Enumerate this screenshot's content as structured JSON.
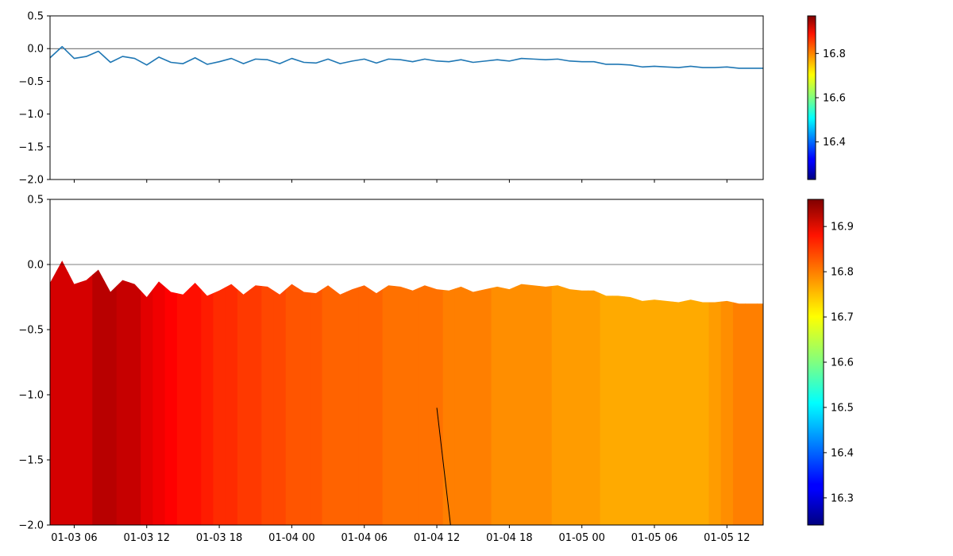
{
  "chart_data": [
    {
      "type": "line",
      "x_axis": {
        "type": "datetime",
        "tick_labels": [
          "01-03 06",
          "01-03 12",
          "01-03 18",
          "01-04 00",
          "01-04 06",
          "01-04 12",
          "01-04 18",
          "01-05 00",
          "01-05 06",
          "01-05 12"
        ]
      },
      "ylim": [
        -2.0,
        0.5
      ],
      "y_ticks": [
        "0.5",
        "0.0",
        "−0.5",
        "−1.0",
        "−1.5",
        "−2.0"
      ],
      "reference_line_y": 0,
      "line_color": "#1f77b4",
      "colorbar": {
        "colormap": "jet",
        "range": [
          16.23,
          16.97
        ],
        "tick_labels": [
          "16.4",
          "16.6",
          "16.8"
        ]
      }
    },
    {
      "type": "area",
      "x_axis": {
        "type": "datetime",
        "tick_labels": [
          "01-03 06",
          "01-03 12",
          "01-03 18",
          "01-04 00",
          "01-04 06",
          "01-04 12",
          "01-04 18",
          "01-05 00",
          "01-05 06",
          "01-05 12"
        ]
      },
      "ylim": [
        -2.0,
        0.5
      ],
      "y_ticks": [
        "0.5",
        "0.0",
        "−0.5",
        "−1.0",
        "−1.5",
        "−2.0"
      ],
      "reference_line_y": 0,
      "fill_colormap": "jet",
      "annotation_line": {
        "x": [
          "2025-01-04 12:00",
          "2025-01-04 13:08"
        ],
        "y": [
          -1.1,
          -2.0
        ]
      },
      "colorbar": {
        "colormap": "jet",
        "range": [
          16.24,
          16.96
        ],
        "tick_labels": [
          "16.3",
          "16.4",
          "16.5",
          "16.6",
          "16.7",
          "16.8",
          "16.9"
        ]
      }
    }
  ],
  "series": {
    "x": [
      "2025-01-03 04:00",
      "2025-01-03 05:00",
      "2025-01-03 06:00",
      "2025-01-03 07:00",
      "2025-01-03 08:00",
      "2025-01-03 09:00",
      "2025-01-03 10:00",
      "2025-01-03 11:00",
      "2025-01-03 12:00",
      "2025-01-03 13:00",
      "2025-01-03 14:00",
      "2025-01-03 15:00",
      "2025-01-03 16:00",
      "2025-01-03 17:00",
      "2025-01-03 18:00",
      "2025-01-03 19:00",
      "2025-01-03 20:00",
      "2025-01-03 21:00",
      "2025-01-03 22:00",
      "2025-01-03 23:00",
      "2025-01-04 00:00",
      "2025-01-04 01:00",
      "2025-01-04 02:00",
      "2025-01-04 03:00",
      "2025-01-04 04:00",
      "2025-01-04 05:00",
      "2025-01-04 06:00",
      "2025-01-04 07:00",
      "2025-01-04 08:00",
      "2025-01-04 09:00",
      "2025-01-04 10:00",
      "2025-01-04 11:00",
      "2025-01-04 12:00",
      "2025-01-04 13:00",
      "2025-01-04 14:00",
      "2025-01-04 15:00",
      "2025-01-04 16:00",
      "2025-01-04 17:00",
      "2025-01-04 18:00",
      "2025-01-04 19:00",
      "2025-01-04 20:00",
      "2025-01-04 21:00",
      "2025-01-04 22:00",
      "2025-01-04 23:00",
      "2025-01-05 00:00",
      "2025-01-05 01:00",
      "2025-01-05 02:00",
      "2025-01-05 03:00",
      "2025-01-05 04:00",
      "2025-01-05 05:00",
      "2025-01-05 06:00",
      "2025-01-05 07:00",
      "2025-01-05 08:00",
      "2025-01-05 09:00",
      "2025-01-05 10:00",
      "2025-01-05 11:00",
      "2025-01-05 12:00",
      "2025-01-05 13:00",
      "2025-01-05 14:00",
      "2025-01-05 15:00"
    ],
    "values": [
      -0.14,
      0.03,
      -0.15,
      -0.12,
      -0.04,
      -0.21,
      -0.12,
      -0.15,
      -0.25,
      -0.13,
      -0.21,
      -0.23,
      -0.14,
      -0.24,
      -0.2,
      -0.15,
      -0.23,
      -0.16,
      -0.17,
      -0.23,
      -0.15,
      -0.21,
      -0.22,
      -0.16,
      -0.23,
      -0.19,
      -0.16,
      -0.22,
      -0.16,
      -0.17,
      -0.2,
      -0.16,
      -0.19,
      -0.2,
      -0.17,
      -0.21,
      -0.19,
      -0.17,
      -0.19,
      -0.15,
      -0.16,
      -0.17,
      -0.16,
      -0.19,
      -0.2,
      -0.2,
      -0.24,
      -0.24,
      -0.25,
      -0.28,
      -0.27,
      -0.28,
      -0.29,
      -0.27,
      -0.29,
      -0.29,
      -0.28,
      -0.3,
      -0.3,
      -0.3
    ],
    "color_values": [
      16.9,
      16.9,
      16.9,
      16.9,
      16.92,
      16.92,
      16.91,
      16.91,
      16.89,
      16.88,
      16.87,
      16.86,
      16.86,
      16.85,
      16.84,
      16.84,
      16.83,
      16.83,
      16.82,
      16.82,
      16.81,
      16.81,
      16.81,
      16.8,
      16.8,
      16.8,
      16.8,
      16.8,
      16.79,
      16.79,
      16.79,
      16.79,
      16.79,
      16.78,
      16.78,
      16.78,
      16.78,
      16.77,
      16.77,
      16.77,
      16.77,
      16.77,
      16.76,
      16.76,
      16.76,
      16.76,
      16.75,
      16.75,
      16.75,
      16.75,
      16.75,
      16.75,
      16.75,
      16.75,
      16.75,
      16.76,
      16.77,
      16.78,
      16.78,
      16.78
    ]
  }
}
